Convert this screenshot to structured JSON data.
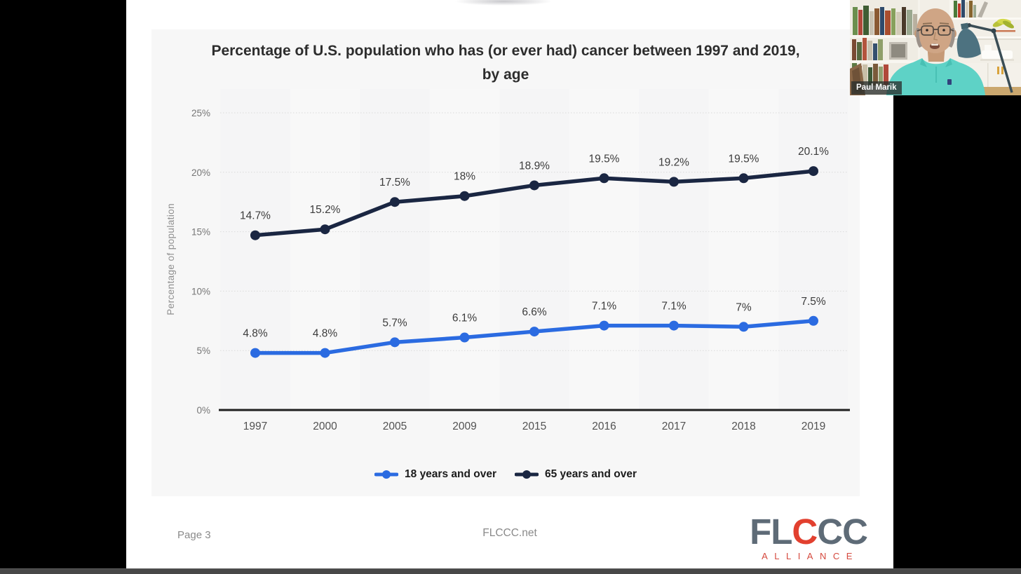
{
  "slide": {
    "title_line1": "Percentage of U.S. population who has (or ever had) cancer between 1997 and 2019,",
    "title_line2": "by age"
  },
  "chart_data": {
    "type": "line",
    "title": "Percentage of U.S. population who has (or ever had) cancer between 1997 and 2019, by age",
    "xlabel": "",
    "ylabel": "Percentage of population",
    "categories": [
      "1997",
      "2000",
      "2005",
      "2009",
      "2015",
      "2016",
      "2017",
      "2018",
      "2019"
    ],
    "series": [
      {
        "name": "18 years and over",
        "color": "#2b6be1",
        "values": [
          4.8,
          4.8,
          5.7,
          6.1,
          6.6,
          7.1,
          7.1,
          7.0,
          7.5
        ],
        "labels": [
          "4.8%",
          "4.8%",
          "5.7%",
          "6.1%",
          "6.6%",
          "7.1%",
          "7.1%",
          "7%",
          "7.5%"
        ]
      },
      {
        "name": "65 years and over",
        "color": "#1a2642",
        "values": [
          14.7,
          15.2,
          17.5,
          18.0,
          18.9,
          19.5,
          19.2,
          19.5,
          20.1
        ],
        "labels": [
          "14.7%",
          "15.2%",
          "17.5%",
          "18%",
          "18.9%",
          "19.5%",
          "19.2%",
          "19.5%",
          "20.1%"
        ]
      }
    ],
    "ylim": [
      0,
      25
    ],
    "yticks": [
      0,
      5,
      10,
      15,
      20,
      25
    ],
    "ytick_labels": [
      "0%",
      "5%",
      "10%",
      "15%",
      "20%",
      "25%"
    ],
    "grid": "horizontal-dotted",
    "legend_position": "bottom"
  },
  "footer": {
    "page_label": "Page 3",
    "site_label": "FLCCC.net",
    "logo": {
      "part1": "FL",
      "part2": "C",
      "part3": "CC",
      "subtitle": "ALLIANCE",
      "gray": "#5e6b77",
      "red": "#e2402f"
    }
  },
  "webcam": {
    "name_tag": "Paul Marik"
  }
}
